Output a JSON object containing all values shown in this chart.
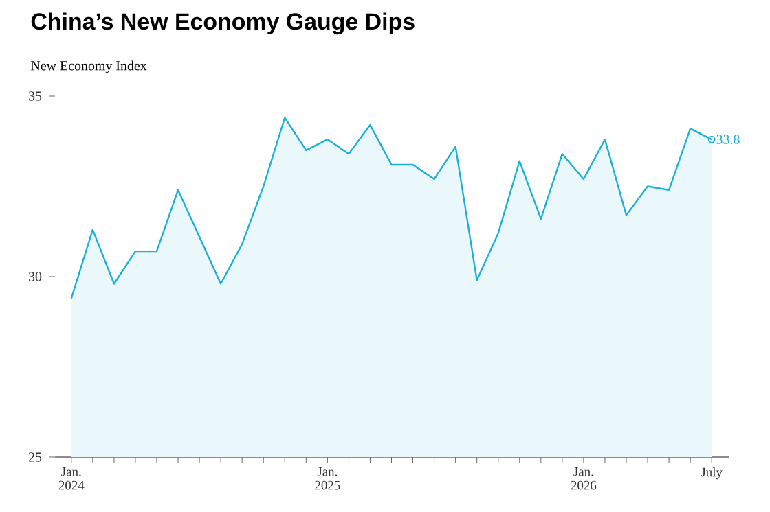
{
  "chart_data": {
    "type": "area",
    "title": "China’s New Economy Gauge Dips",
    "subtitle": "New Economy Index",
    "x": [
      "2024-01",
      "2024-02",
      "2024-03",
      "2024-04",
      "2024-05",
      "2024-06",
      "2024-07",
      "2024-08",
      "2024-09",
      "2024-10",
      "2024-11",
      "2024-12",
      "2025-01",
      "2025-02",
      "2025-03",
      "2025-04",
      "2025-05",
      "2025-06",
      "2025-07",
      "2025-08",
      "2025-09",
      "2025-10",
      "2025-11",
      "2025-12",
      "2026-01",
      "2026-02",
      "2026-03",
      "2026-04",
      "2026-05",
      "2026-06",
      "2026-07"
    ],
    "series": [
      {
        "color": "#1ab0d8",
        "values": [
          29.4,
          31.3,
          29.8,
          30.7,
          30.7,
          32.4,
          31.1,
          29.8,
          30.9,
          32.5,
          34.4,
          33.5,
          33.8,
          33.4,
          34.2,
          33.1,
          33.1,
          32.7,
          33.6,
          29.9,
          31.2,
          33.2,
          31.6,
          33.4,
          32.7,
          33.8,
          31.7,
          32.5,
          32.4,
          34.1,
          33.8
        ]
      },
      {
        "type": "scatter",
        "color": "#1ab0d8",
        "marker": "circle",
        "values": [
          null,
          null,
          null,
          null,
          null,
          null,
          null,
          null,
          null,
          null,
          null,
          null,
          null,
          null,
          null,
          null,
          null,
          null,
          null,
          null,
          null,
          null,
          null,
          null,
          null,
          null,
          null,
          null,
          null,
          null,
          33.8
        ],
        "value_labels": [
          null,
          null,
          null,
          null,
          null,
          null,
          null,
          null,
          null,
          null,
          null,
          null,
          null,
          null,
          null,
          null,
          null,
          null,
          null,
          null,
          null,
          null,
          null,
          null,
          null,
          null,
          null,
          null,
          null,
          null,
          "33.8"
        ]
      }
    ],
    "xlim": [
      "2023-12-08",
      "2026-07-25"
    ],
    "xticks": [
      {
        "value": "2024-01",
        "label": "Jan. 2024"
      },
      {
        "value": "2024-02",
        "label": null
      },
      {
        "value": "2024-03",
        "label": null
      },
      {
        "value": "2024-04",
        "label": null
      },
      {
        "value": "2024-05",
        "label": null
      },
      {
        "value": "2024-06",
        "label": null
      },
      {
        "value": "2024-07",
        "label": null
      },
      {
        "value": "2024-08",
        "label": null
      },
      {
        "value": "2024-09",
        "label": null
      },
      {
        "value": "2024-10",
        "label": null
      },
      {
        "value": "2024-11",
        "label": null
      },
      {
        "value": "2024-12",
        "label": null
      },
      {
        "value": "2025-01",
        "label": "Jan. 2025"
      },
      {
        "value": "2025-02",
        "label": null
      },
      {
        "value": "2025-03",
        "label": null
      },
      {
        "value": "2025-04",
        "label": null
      },
      {
        "value": "2025-05",
        "label": null
      },
      {
        "value": "2025-06",
        "label": null
      },
      {
        "value": "2025-07",
        "label": null
      },
      {
        "value": "2025-08",
        "label": null
      },
      {
        "value": "2025-09",
        "label": null
      },
      {
        "value": "2025-10",
        "label": null
      },
      {
        "value": "2025-11",
        "label": null
      },
      {
        "value": "2025-12",
        "label": null
      },
      {
        "value": "2026-01",
        "label": "Jan. 2026"
      },
      {
        "value": "2026-02",
        "label": null
      },
      {
        "value": "2026-03",
        "label": null
      },
      {
        "value": "2026-04",
        "label": null
      },
      {
        "value": "2026-05",
        "label": null
      },
      {
        "value": "2026-06",
        "label": null
      },
      {
        "value": "2026-07",
        "label": "July"
      }
    ],
    "ylim": [
      25,
      35
    ],
    "yticks": [
      25,
      30,
      35
    ],
    "grid": false
  }
}
